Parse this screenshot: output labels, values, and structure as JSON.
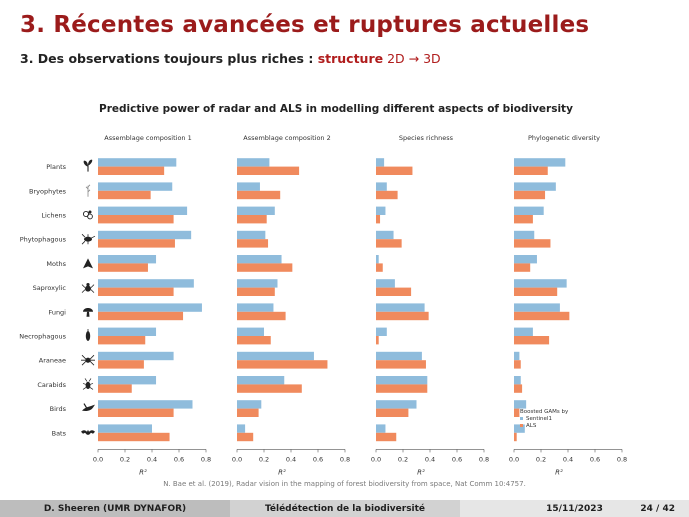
{
  "slide": {
    "title": "3. Récentes avancées et ruptures actuelles",
    "subtitle_prefix": "3. Des observations toujours plus riches : ",
    "subtitle_accent": "structure",
    "subtitle_tail": " 2D → 3D"
  },
  "chart_data": {
    "type": "bar",
    "orientation": "horizontal",
    "title": "Predictive power of radar and ALS in modelling different aspects of biodiversity",
    "xlabel": "R²",
    "xlim": [
      0,
      0.8
    ],
    "xticks": [
      "0.0",
      "0.2",
      "0.4",
      "0.6",
      "0.8"
    ],
    "categories": [
      "Plants",
      "Bryophytes",
      "Lichens",
      "Phytophagous",
      "Moths",
      "Saproxylic",
      "Fungi",
      "Necrophagous",
      "Araneae",
      "Carabids",
      "Birds",
      "Bats"
    ],
    "category_icons": [
      "sprout-icon",
      "moss-icon",
      "lichen-icon",
      "weevil-icon",
      "moth-icon",
      "spider-icon",
      "mushroom-icon",
      "beetle-icon",
      "araneae-spider-icon",
      "carabid-icon",
      "bird-icon",
      "bat-icon"
    ],
    "legend": {
      "title": "Boosted GAMs by",
      "entries": [
        {
          "name": "Sentinel1",
          "color": "#8fbcdc"
        },
        {
          "name": "ALS",
          "color": "#f08a5d"
        }
      ]
    },
    "panels": [
      {
        "title": "Assemblage composition 1",
        "series": [
          {
            "name": "Sentinel1",
            "values": [
              0.58,
              0.55,
              0.66,
              0.69,
              0.43,
              0.71,
              0.77,
              0.43,
              0.56,
              0.43,
              0.7,
              0.4
            ]
          },
          {
            "name": "ALS",
            "values": [
              0.49,
              0.39,
              0.56,
              0.57,
              0.37,
              0.56,
              0.63,
              0.35,
              0.34,
              0.25,
              0.56,
              0.53
            ]
          }
        ]
      },
      {
        "title": "Assemblage composition 2",
        "series": [
          {
            "name": "Sentinel1",
            "values": [
              0.24,
              0.17,
              0.28,
              0.21,
              0.33,
              0.3,
              0.27,
              0.2,
              0.57,
              0.35,
              0.18,
              0.06
            ]
          },
          {
            "name": "ALS",
            "values": [
              0.46,
              0.32,
              0.22,
              0.23,
              0.41,
              0.28,
              0.36,
              0.25,
              0.67,
              0.48,
              0.16,
              0.12
            ]
          }
        ]
      },
      {
        "title": "Species richness",
        "series": [
          {
            "name": "Sentinel1",
            "values": [
              0.06,
              0.08,
              0.07,
              0.13,
              0.02,
              0.14,
              0.36,
              0.08,
              0.34,
              0.38,
              0.3,
              0.07
            ]
          },
          {
            "name": "ALS",
            "values": [
              0.27,
              0.16,
              0.03,
              0.19,
              0.05,
              0.26,
              0.39,
              0.02,
              0.37,
              0.38,
              0.24,
              0.15
            ]
          }
        ]
      },
      {
        "title": "Phylogenetic diversity",
        "series": [
          {
            "name": "Sentinel1",
            "values": [
              0.38,
              0.31,
              0.22,
              0.15,
              0.17,
              0.39,
              0.34,
              0.14,
              0.04,
              0.05,
              0.09,
              0.08
            ]
          },
          {
            "name": "ALS",
            "values": [
              0.25,
              0.23,
              0.14,
              0.27,
              0.12,
              0.32,
              0.41,
              0.26,
              0.05,
              0.06,
              0.04,
              0.02
            ]
          }
        ]
      }
    ]
  },
  "citation": "N. Bae et al. (2019), Radar vision in the mapping of forest biodiversity from space, Nat Comm 10:4757.",
  "footer": {
    "author": "D. Sheeren  (UMR DYNAFOR)",
    "title": "Télédétection de la biodiversité",
    "date": "15/11/2023",
    "page": "24 / 42"
  }
}
